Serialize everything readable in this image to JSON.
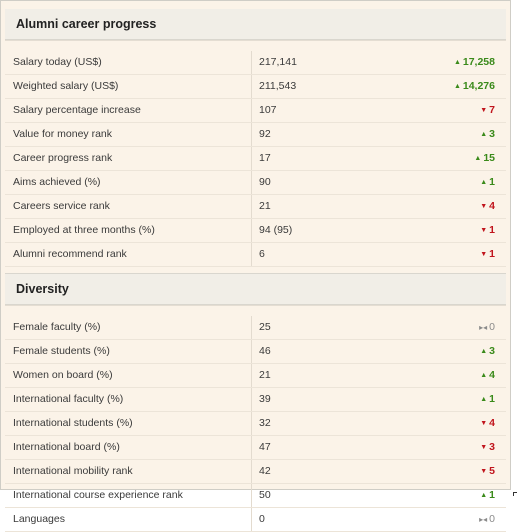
{
  "sections": [
    {
      "title": "Alumni career progress",
      "rows": [
        {
          "label": "Salary today (US$)",
          "value": "217,141",
          "change": "17,258",
          "direction": "up"
        },
        {
          "label": "Weighted salary (US$)",
          "value": "211,543",
          "change": "14,276",
          "direction": "up"
        },
        {
          "label": "Salary percentage increase",
          "value": "107",
          "change": "7",
          "direction": "down"
        },
        {
          "label": "Value for money rank",
          "value": "92",
          "change": "3",
          "direction": "up"
        },
        {
          "label": "Career progress rank",
          "value": "17",
          "change": "15",
          "direction": "up"
        },
        {
          "label": "Aims achieved (%)",
          "value": "90",
          "change": "1",
          "direction": "up"
        },
        {
          "label": "Careers service rank",
          "value": "21",
          "change": "4",
          "direction": "down"
        },
        {
          "label": "Employed at three months (%)",
          "value": "94 (95)",
          "change": "1",
          "direction": "down"
        },
        {
          "label": "Alumni recommend rank",
          "value": "6",
          "change": "1",
          "direction": "down"
        }
      ]
    },
    {
      "title": "Diversity",
      "rows": [
        {
          "label": "Female faculty (%)",
          "value": "25",
          "change": "0",
          "direction": "same"
        },
        {
          "label": "Female students (%)",
          "value": "46",
          "change": "3",
          "direction": "up"
        },
        {
          "label": "Women on board (%)",
          "value": "21",
          "change": "4",
          "direction": "up"
        },
        {
          "label": "International faculty (%)",
          "value": "39",
          "change": "1",
          "direction": "up"
        },
        {
          "label": "International students (%)",
          "value": "32",
          "change": "4",
          "direction": "down"
        },
        {
          "label": "International board (%)",
          "value": "47",
          "change": "3",
          "direction": "down"
        },
        {
          "label": "International mobility rank",
          "value": "42",
          "change": "5",
          "direction": "down"
        },
        {
          "label": "International course experience rank",
          "value": "50",
          "change": "1",
          "direction": "up"
        },
        {
          "label": "Languages",
          "value": "0",
          "change": "0",
          "direction": "same"
        }
      ]
    }
  ],
  "arrow_glyphs": {
    "up": "▲",
    "down": "▼",
    "same": "▸◂"
  },
  "colors": {
    "up": "#3a8a1a",
    "down": "#c0141c",
    "same": "#8a8a8a",
    "panel_bg": "#fbf3e8",
    "header_bg": "#f1eee7"
  }
}
